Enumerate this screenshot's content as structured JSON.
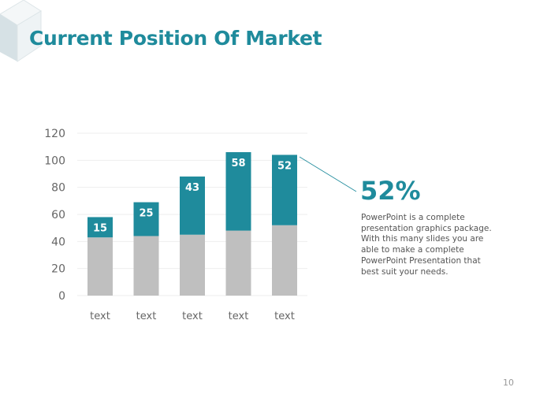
{
  "slide": {
    "title": "Current Position Of Market",
    "highlight_value": "52%",
    "description": "PowerPoint is a complete presentation graphics package. With this many slides you are able to make a complete PowerPoint Presentation that best suit your needs.",
    "page_number": "10"
  },
  "colors": {
    "accent": "#1f8b9c",
    "base": "#bfbfbf",
    "grid": "#eeeeee"
  },
  "chart_data": {
    "type": "bar",
    "stacked": true,
    "categories": [
      "text",
      "text",
      "text",
      "text",
      "text"
    ],
    "series": [
      {
        "name": "base",
        "values": [
          43,
          44,
          45,
          48,
          52
        ],
        "color": "#bfbfbf"
      },
      {
        "name": "top",
        "values": [
          15,
          25,
          43,
          58,
          52
        ],
        "color": "#1f8b9c",
        "labels": [
          "15",
          "25",
          "43",
          "58",
          "52"
        ]
      }
    ],
    "ylim": [
      0,
      120
    ],
    "yticks": [
      0,
      20,
      40,
      60,
      80,
      100,
      120
    ],
    "grid": true,
    "legend": "none",
    "title": "",
    "xlabel": "",
    "ylabel": ""
  }
}
